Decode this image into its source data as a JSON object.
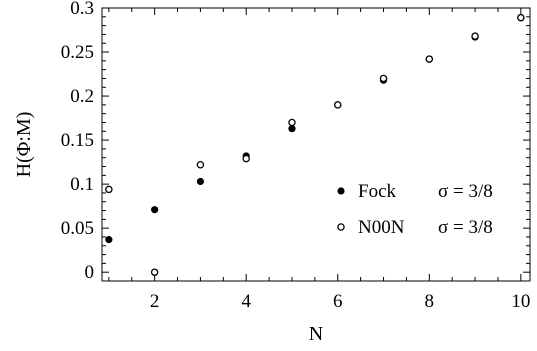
{
  "chart_data": {
    "type": "scatter",
    "title": "",
    "xlabel": "N",
    "ylabel": "H(Φ:M)",
    "xlim": [
      0.85,
      10.2
    ],
    "ylim": [
      -0.01,
      0.3
    ],
    "x_ticks": [
      2,
      4,
      6,
      8,
      10
    ],
    "x_tick_labels": [
      "2",
      "4",
      "6",
      "8",
      "10"
    ],
    "y_ticks": [
      0,
      0.05,
      0.1,
      0.15,
      0.2,
      0.25,
      0.3
    ],
    "y_tick_labels": [
      "0",
      "0.05",
      "0.1",
      "0.15",
      "0.2",
      "0.25",
      "0.3"
    ],
    "grid": false,
    "legend_position": "lower-right",
    "series": [
      {
        "name": "Fock",
        "sigma_label": "σ = 3/8",
        "marker": "filled",
        "x": [
          1,
          2,
          3,
          4,
          5,
          6,
          7,
          8,
          9,
          10
        ],
        "y": [
          0.037,
          0.071,
          0.103,
          0.132,
          0.163,
          0.19,
          0.218,
          0.242,
          0.267,
          0.289
        ]
      },
      {
        "name": "N00N",
        "sigma_label": "σ = 3/8",
        "marker": "open",
        "x": [
          1,
          2,
          3,
          4,
          5,
          6,
          7,
          8,
          9,
          10
        ],
        "y": [
          0.094,
          0.0,
          0.122,
          0.129,
          0.17,
          0.19,
          0.22,
          0.242,
          0.268,
          0.289
        ]
      }
    ],
    "colors": {
      "marker": "#000000"
    }
  }
}
